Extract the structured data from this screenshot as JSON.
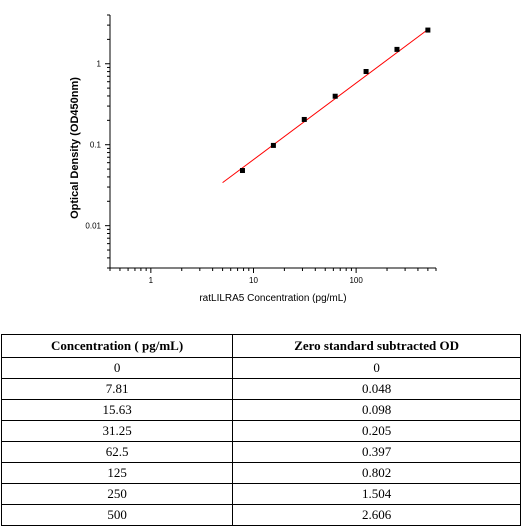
{
  "chart_data": {
    "type": "scatter",
    "x_scale": "log",
    "y_scale": "log",
    "xlabel": "ratLILRA5 Concentration (pg/mL)",
    "ylabel": "Optical Density (OD450nm)",
    "xlim": [
      0.4,
      600
    ],
    "ylim": [
      0.003,
      4
    ],
    "x_ticks": [
      {
        "value": 1,
        "label": "1"
      },
      {
        "value": 10,
        "label": "10"
      },
      {
        "value": 100,
        "label": "100"
      }
    ],
    "y_ticks": [
      {
        "value": 0.01,
        "label": "0.01"
      },
      {
        "value": 0.1,
        "label": "0.1"
      },
      {
        "value": 1,
        "label": "1"
      }
    ],
    "series": [
      {
        "x": [
          7.81,
          15.63,
          31.25,
          62.5,
          125,
          250,
          500
        ],
        "y": [
          0.048,
          0.098,
          0.205,
          0.397,
          0.802,
          1.504,
          2.606
        ],
        "color": "#000000"
      }
    ],
    "fit_line": {
      "x": [
        5,
        500
      ],
      "y": [
        0.034,
        2.65
      ],
      "color": "#ff0000"
    },
    "grid": false
  },
  "table": {
    "headers": [
      "Concentration ( pg/mL)",
      "Zero standard subtracted OD"
    ],
    "rows": [
      [
        "0",
        "0"
      ],
      [
        "7.81",
        "0.048"
      ],
      [
        "15.63",
        "0.098"
      ],
      [
        "31.25",
        "0.205"
      ],
      [
        "62.5",
        "0.397"
      ],
      [
        "125",
        "0.802"
      ],
      [
        "250",
        "1.504"
      ],
      [
        "500",
        "2.606"
      ]
    ]
  }
}
